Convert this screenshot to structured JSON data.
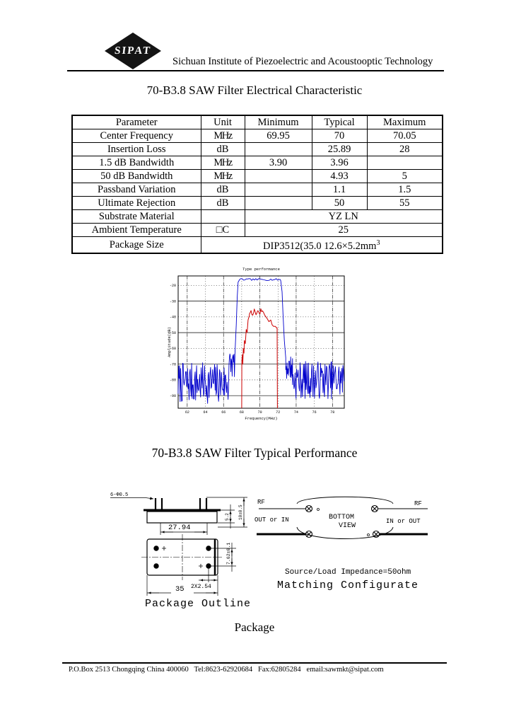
{
  "header": {
    "logo_text": "SIPAT",
    "company": "Sichuan Institute of Piezoelectric and Acoustooptic Technology"
  },
  "electrical": {
    "title": "70-B3.8 SAW Filter Electrical Characteristic",
    "columns": [
      "Parameter",
      "Unit",
      "Minimum",
      "Typical",
      "Maximum"
    ],
    "rows": [
      {
        "p": "Center Frequency",
        "u": "MHz",
        "min": "69.95",
        "typ": "70",
        "max": "70.05"
      },
      {
        "p": "Insertion Loss",
        "u": "dB",
        "min": "",
        "typ": "25.89",
        "max": "28"
      },
      {
        "p": "1.5 dB Bandwidth",
        "u": "MHz",
        "min": "3.90",
        "typ": "3.96",
        "max": ""
      },
      {
        "p": "50 dB Bandwidth",
        "u": "MHz",
        "min": "",
        "typ": "4.93",
        "max": "5"
      },
      {
        "p": "Passband Variation",
        "u": "dB",
        "min": "",
        "typ": "1.1",
        "max": "1.5"
      },
      {
        "p": "Ultimate Rejection",
        "u": "dB",
        "min": "",
        "typ": "50",
        "max": "55"
      },
      {
        "p": "Substrate Material",
        "u": "",
        "value": "YZ LN"
      },
      {
        "p": "Ambient Temperature",
        "u": "□C",
        "value": "25"
      },
      {
        "p": "Package Size",
        "value": "DIP3512(35.0 12.6×5.2mm",
        "sup": "3"
      }
    ]
  },
  "chart_data": {
    "type": "line",
    "title": "Type performance",
    "xlabel": "Frequency(MHz)",
    "ylabel": "Amplitude(dB)",
    "xlim": [
      61,
      79.3
    ],
    "ylim": [
      -98,
      -14
    ],
    "xticks": [
      62,
      64,
      66,
      68,
      70,
      72,
      74,
      76,
      78
    ],
    "yticks": [
      -20,
      -30,
      -40,
      -50,
      -60,
      -70,
      -80,
      -90
    ],
    "solid_xticks": [
      62,
      66,
      70,
      74,
      78
    ],
    "solid_yticks": [
      -30,
      -50,
      -70,
      -90
    ],
    "grid": true,
    "legend_position": "none",
    "series": [
      {
        "name": "wideband-response",
        "color": "#0000cc",
        "width": 0.9,
        "seed": 7,
        "segments": [
          {
            "type": "noise",
            "x0": 61.0,
            "x1": 66.6,
            "mean": -82,
            "amp": 13,
            "step": 0.055
          },
          {
            "type": "noise",
            "x0": 66.6,
            "x1": 67.25,
            "mean": -70,
            "amp": 9,
            "step": 0.05
          },
          {
            "type": "line",
            "points": [
              [
                67.25,
                -64
              ],
              [
                67.4,
                -45
              ],
              [
                67.5,
                -28
              ],
              [
                67.6,
                -18
              ],
              [
                67.75,
                -16.5
              ]
            ]
          },
          {
            "type": "noise",
            "x0": 67.75,
            "x1": 72.3,
            "mean": -16.3,
            "amp": 0.6,
            "step": 0.15
          },
          {
            "type": "line",
            "points": [
              [
                72.3,
                -17
              ],
              [
                72.45,
                -24
              ],
              [
                72.55,
                -38
              ],
              [
                72.7,
                -55
              ],
              [
                72.85,
                -66
              ]
            ]
          },
          {
            "type": "noise",
            "x0": 72.85,
            "x1": 73.6,
            "mean": -72,
            "amp": 8,
            "step": 0.05
          },
          {
            "type": "noise",
            "x0": 73.6,
            "x1": 79.3,
            "mean": -80,
            "amp": 12,
            "step": 0.055
          }
        ]
      },
      {
        "name": "passband-detail",
        "color": "#cc0000",
        "width": 1,
        "seed": 13,
        "segments": [
          {
            "type": "line",
            "points": [
              [
                68.0,
                -98
              ],
              [
                68.02,
                -68
              ],
              [
                68.08,
                -64
              ],
              [
                68.12,
                -70
              ],
              [
                68.18,
                -60
              ],
              [
                68.25,
                -63
              ],
              [
                68.3,
                -55
              ],
              [
                68.4,
                -57
              ],
              [
                68.5,
                -48
              ],
              [
                68.6,
                -50
              ],
              [
                68.7,
                -42
              ],
              [
                68.85,
                -39
              ]
            ]
          },
          {
            "type": "noise",
            "x0": 68.85,
            "x1": 70.55,
            "mean": -37,
            "amp": 2.2,
            "step": 0.09
          },
          {
            "type": "line",
            "points": [
              [
                70.55,
                -39
              ],
              [
                70.8,
                -41
              ],
              [
                71.0,
                -43
              ],
              [
                71.2,
                -42
              ],
              [
                71.35,
                -45
              ],
              [
                71.5,
                -46
              ],
              [
                71.7,
                -46
              ],
              [
                71.85,
                -47
              ],
              [
                71.9,
                -47
              ],
              [
                71.93,
                -98
              ]
            ]
          }
        ]
      }
    ]
  },
  "performance_title": "70-B3.8 SAW Filter Typical Performance",
  "package": {
    "outline_caption": "Package Outline",
    "section_title": "Package",
    "dims": {
      "pins_label": "6-Φ0.5",
      "pin_span": "27.94",
      "pkg_height": "10±0.5",
      "body_height": "5.2",
      "pkg_length": "35",
      "pin_row_pitch": "7.62±0.1",
      "pin_col_pitch": "2X2.54"
    },
    "schematic": {
      "rf_left": "RF",
      "out_in": "OUT or IN",
      "bottom": "BOTTOM",
      "view": "VIEW",
      "rf_right": "RF",
      "in_out": "IN or OUT"
    },
    "impedance_note": "Source/Load Impedance=50ohm",
    "matching_label": "Matching Configurate"
  },
  "footer": {
    "text": "P.O.Box 2513 Chongqing China 400060   Tel:8623-62920684   Fax:62805284   email:sawmkt@sipat.com"
  }
}
